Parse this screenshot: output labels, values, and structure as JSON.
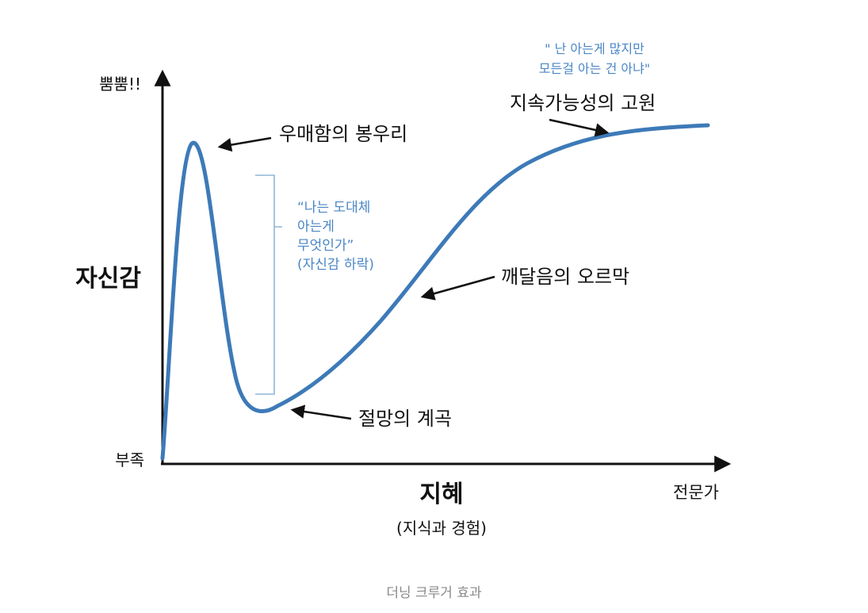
{
  "y_axis": {
    "top_label": "뿜뿜!!",
    "title": "자신감",
    "bottom_label": "부족"
  },
  "x_axis": {
    "title": "지혜",
    "subtitle": "(지식과 경험)",
    "end_label": "전문가"
  },
  "annotations": {
    "peak": "우매함의 봉우리",
    "valley": "절망의 계곡",
    "slope": "깨달음의 오르막",
    "plateau": "지속가능성의 고원",
    "drop_note": [
      "“나는 도대체",
      "아는게",
      "무엇인가”",
      "(자신감 하락)"
    ],
    "plateau_note": [
      "\" 난 아는게 많지만",
      "모든걸 아는 건 아냐\""
    ]
  },
  "caption": "더닝 크루거 효과",
  "colors": {
    "curve": "#3d7ab8",
    "note_text": "#4a86c5",
    "axis": "#111111",
    "caption": "#8a8a8a"
  }
}
